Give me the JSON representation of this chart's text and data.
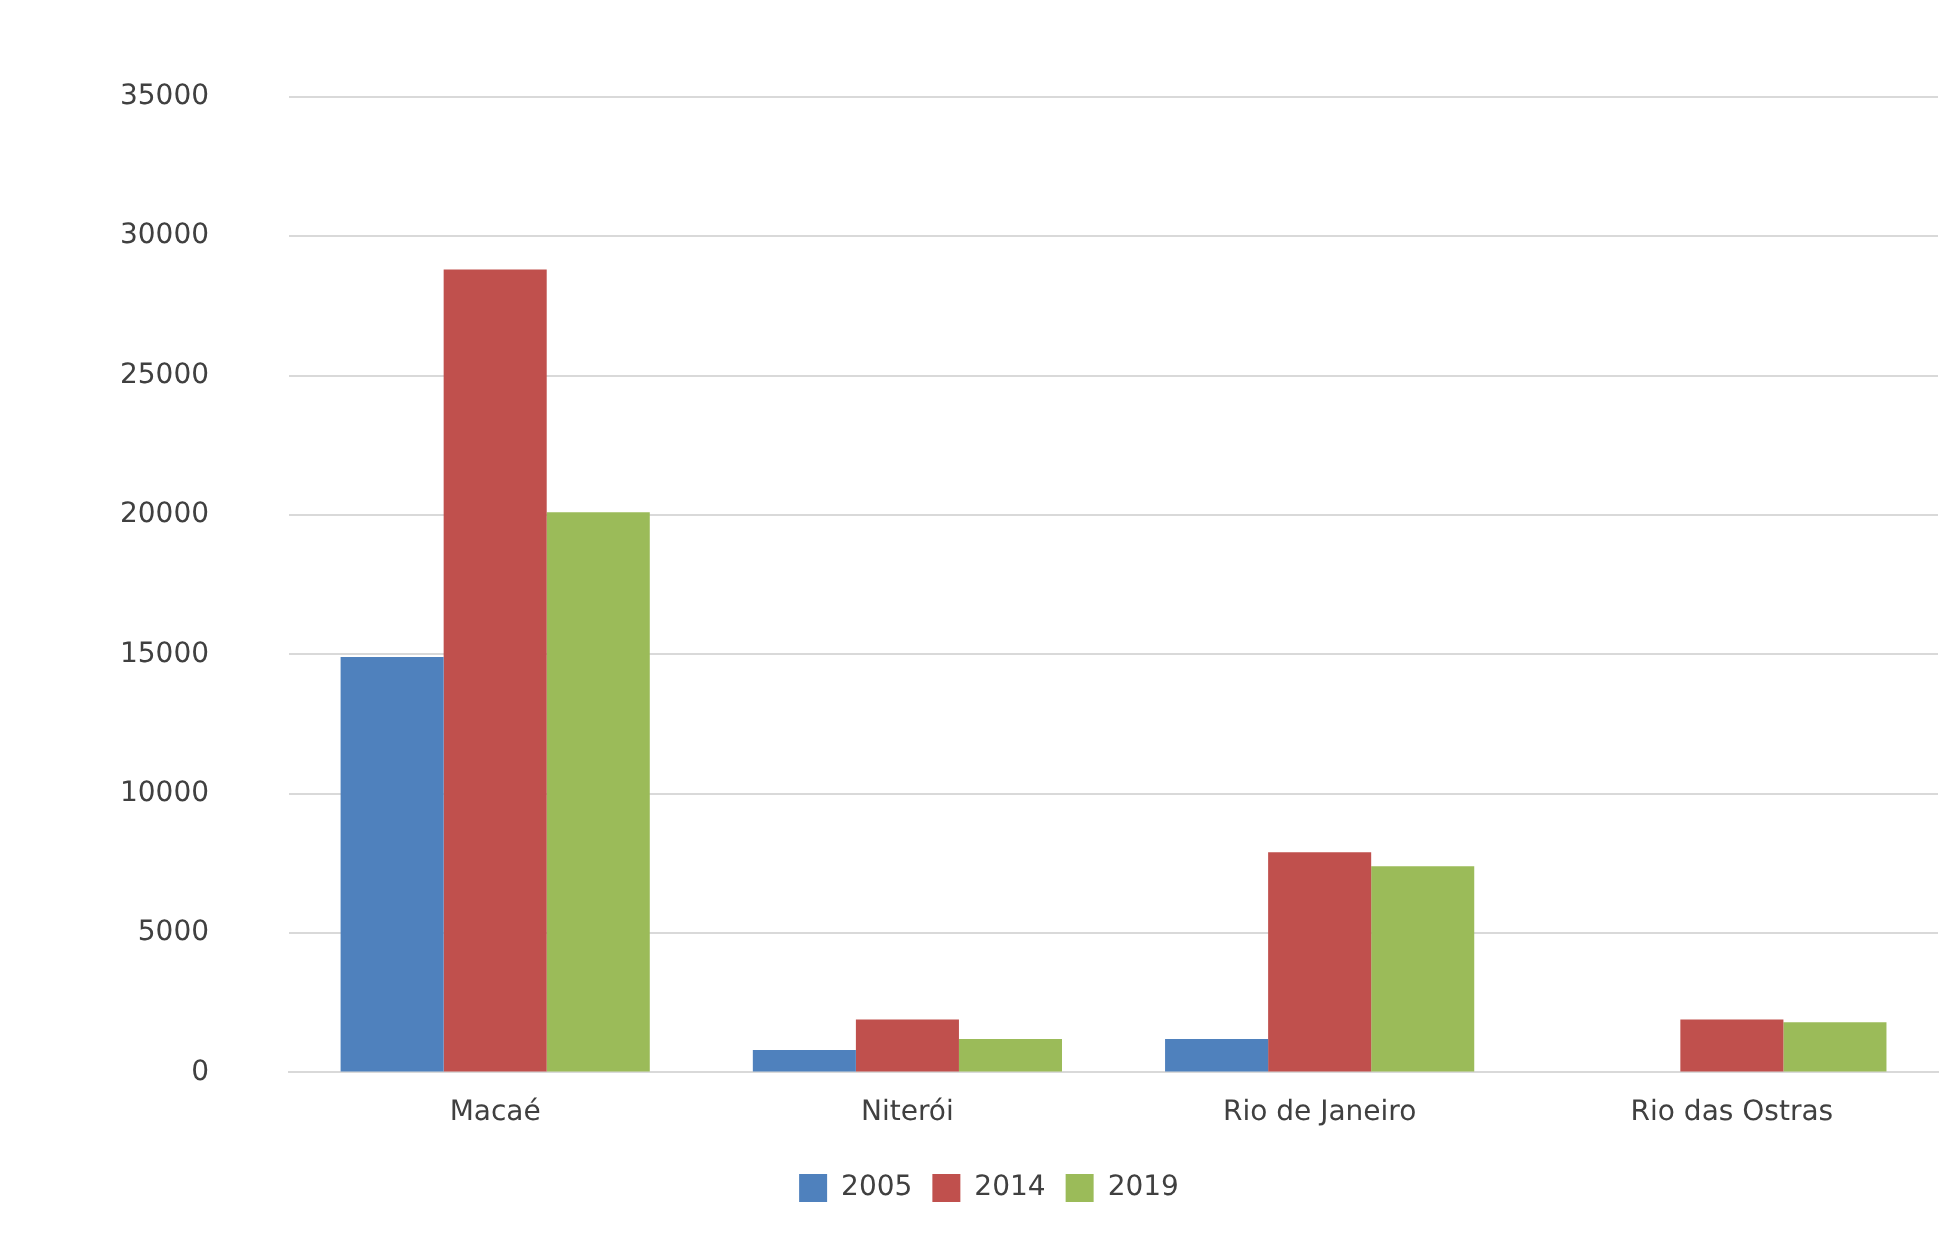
{
  "chart_data": {
    "type": "bar",
    "categories": [
      "Macaé",
      "Niterói",
      "Rio de Janeiro",
      "Rio das Ostras"
    ],
    "series": [
      {
        "name": "2005",
        "color": "#4f81bd",
        "values": [
          14900,
          800,
          1200,
          null
        ]
      },
      {
        "name": "2014",
        "color": "#c0504d",
        "values": [
          28800,
          1900,
          7900,
          1900
        ]
      },
      {
        "name": "2019",
        "color": "#9bbb59",
        "values": [
          20100,
          1200,
          7400,
          1800
        ]
      }
    ],
    "ylim": [
      0,
      35000
    ],
    "yticks": [
      0,
      5000,
      10000,
      15000,
      20000,
      25000,
      30000,
      35000
    ],
    "grid": "y",
    "legend": "bottom"
  }
}
